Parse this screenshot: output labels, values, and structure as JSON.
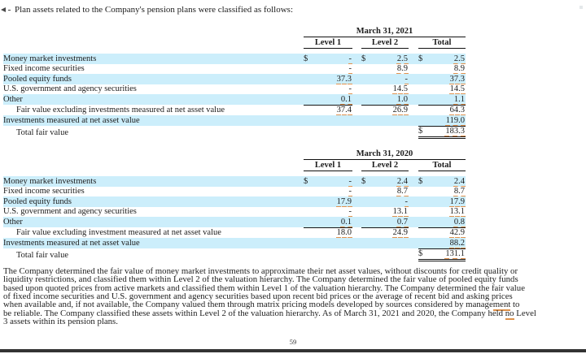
{
  "page": {
    "intro": "Plan assets related to the Company's pension plans were classified as follows:",
    "footer_page_number": "59"
  },
  "colors": {
    "stripe": "#cceefb",
    "tag_underline": "#e2924e"
  },
  "tables": [
    {
      "date": "March 31, 2021",
      "columns": [
        "Level 1",
        "Level 2",
        "Total"
      ],
      "currency_symbol": "$",
      "rows": [
        {
          "label": "Money market investments",
          "stripe": true,
          "dollar": true,
          "l1": "-",
          "l2": "2.5",
          "total": "2.5"
        },
        {
          "label": "Fixed income securities",
          "l1": "-",
          "l2": "8.9",
          "total": "8.9"
        },
        {
          "label": "Pooled equity funds",
          "stripe": true,
          "l1": "37.3",
          "l2": "-",
          "total": "37.3"
        },
        {
          "label": "U.S. government and agency securities",
          "l1": "-",
          "l2": "14.5",
          "total": "14.5"
        },
        {
          "label": "Other",
          "stripe": true,
          "l1": "0.1",
          "l2": "1.0",
          "total": "1.1",
          "sum_line_below": true
        },
        {
          "label": "Fair value excluding investments measured at net asset value",
          "indent": true,
          "l1": "37.4",
          "l2": "26.9",
          "total": "64.3"
        },
        {
          "label": "Investments measured at net asset value",
          "stripe": true,
          "total": "119.0"
        },
        {
          "label": "Total fair value",
          "indent": true,
          "total_dollar": true,
          "total": "183.3",
          "grand_total": true
        }
      ]
    },
    {
      "date": "March 31, 2020",
      "columns": [
        "Level 1",
        "Level 2",
        "Total"
      ],
      "currency_symbol": "$",
      "rows": [
        {
          "label": "Money market investments",
          "stripe": true,
          "dollar": true,
          "l1": "-",
          "l2": "2.4",
          "total": "2.4"
        },
        {
          "label": "Fixed income securities",
          "l1": "-",
          "l2": "8.7",
          "total": "8.7"
        },
        {
          "label": "Pooled equity funds",
          "stripe": true,
          "l1": "17.9",
          "l2": "-",
          "total": "17.9"
        },
        {
          "label": "U.S. government and agency securities",
          "l1": "-",
          "l2": "13.1",
          "total": "13.1"
        },
        {
          "label": "Other",
          "stripe": true,
          "l1": "0.1",
          "l2": "0.7",
          "total": "0.8",
          "sum_line_below": true
        },
        {
          "label": "Fair value excluding investment measured at net asset value",
          "indent": true,
          "l1": "18.0",
          "l2": "24.9",
          "total": "42.9"
        },
        {
          "label": "Investments measured at net asset value",
          "stripe": true,
          "total": "88.2"
        },
        {
          "label": "Total fair value",
          "indent": true,
          "total_dollar": true,
          "total": "131.1",
          "grand_total": true
        }
      ]
    }
  ],
  "paragraph_lines": [
    [
      {
        "t": "The Company determined the fair value of money market investments to approximate their net asset values, without discounts for credit quality or"
      }
    ],
    [
      {
        "t": "liquidity restrictions, and classified them within Level 2 of the valuation hierarchy.  The Company determined the fair value of pooled equity funds"
      }
    ],
    [
      {
        "t": "based upon quoted prices from active markets and classified them within Level 1 of the valuation hierarchy.  The Company determined the fair value"
      }
    ],
    [
      {
        "t": "of fixed income securities and U.S. government and agency securities based upon recent bid prices or the average of recent bid and asking prices"
      }
    ],
    [
      {
        "t": "when available and, if not available, the Company valued them through matrix pricing models developed by sources considered by manage"
      },
      {
        "t": "ment",
        "tagged": true
      },
      {
        "t": " to"
      }
    ],
    [
      {
        "t": "be reliable.  The Company classified these assets within Level 2 of the valuation hierarchy.  As of March 31, 2021 and 2020, the Company held "
      },
      {
        "t": "no",
        "tagged": true
      },
      {
        "t": " Level"
      }
    ],
    [
      {
        "t": "3 assets within its pension plans."
      }
    ]
  ]
}
